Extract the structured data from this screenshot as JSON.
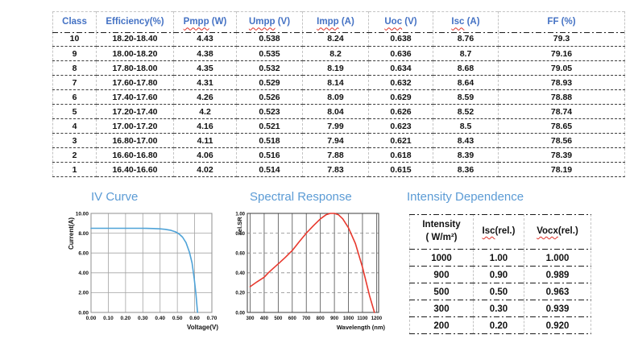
{
  "colors": {
    "header_blue": "#4472c4",
    "title_blue": "#5b9bd5",
    "squiggle_red": "#e03229",
    "iv_line_blue": "#4fa3d8",
    "sr_line_red": "#e8392e"
  },
  "main_table": {
    "columns": [
      {
        "word": "Class",
        "suffix": "",
        "squiggle": false
      },
      {
        "word": "Efficiency(%)",
        "suffix": "",
        "squiggle": false
      },
      {
        "word": "Pmpp",
        "suffix": " (W)",
        "squiggle": true
      },
      {
        "word": "Umpp",
        "suffix": " (V)",
        "squiggle": true
      },
      {
        "word": "Impp",
        "suffix": " (A)",
        "squiggle": true
      },
      {
        "word": "Uoc",
        "suffix": " (V)",
        "squiggle": true
      },
      {
        "word": "Isc",
        "suffix": " (A)",
        "squiggle": true
      },
      {
        "word": "FF (%)",
        "suffix": "",
        "squiggle": false
      }
    ],
    "rows": [
      [
        "10",
        "18.20-18.40",
        "4.43",
        "0.538",
        "8.24",
        "0.638",
        "8.76",
        "79.3"
      ],
      [
        "9",
        "18.00-18.20",
        "4.38",
        "0.535",
        "8.2",
        "0.636",
        "8.7",
        "79.16"
      ],
      [
        "8",
        "17.80-18.00",
        "4.35",
        "0.532",
        "8.19",
        "0.634",
        "8.68",
        "79.05"
      ],
      [
        "7",
        "17.60-17.80",
        "4.31",
        "0.529",
        "8.14",
        "0.632",
        "8.64",
        "78.93"
      ],
      [
        "6",
        "17.40-17.60",
        "4.26",
        "0.526",
        "8.09",
        "0.629",
        "8.59",
        "78.88"
      ],
      [
        "5",
        "17.20-17.40",
        "4.2",
        "0.523",
        "8.04",
        "0.626",
        "8.52",
        "78.74"
      ],
      [
        "4",
        "17.00-17.20",
        "4.16",
        "0.521",
        "7.99",
        "0.623",
        "8.5",
        "78.65"
      ],
      [
        "3",
        "16.80-17.00",
        "4.11",
        "0.518",
        "7.94",
        "0.621",
        "8.43",
        "78.56"
      ],
      [
        "2",
        "16.60-16.80",
        "4.06",
        "0.516",
        "7.88",
        "0.618",
        "8.39",
        "78.39"
      ],
      [
        "1",
        "16.40-16.60",
        "4.02",
        "0.514",
        "7.83",
        "0.615",
        "8.36",
        "78.19"
      ]
    ]
  },
  "intensity": {
    "title": "Intensity Dependence",
    "columns": [
      {
        "line1": "Intensity",
        "line2": "( W/m²)",
        "word": "",
        "suffix": "",
        "squiggle": false
      },
      {
        "line1": "",
        "line2": "",
        "word": "Isc",
        "suffix": "(rel.)",
        "squiggle": true
      },
      {
        "line1": "",
        "line2": "",
        "word": "Vocx",
        "suffix": "(rel.)",
        "squiggle": true
      }
    ],
    "rows": [
      [
        "1000",
        "1.00",
        "1.000"
      ],
      [
        "900",
        "0.90",
        "0.989"
      ],
      [
        "500",
        "0.50",
        "0.963"
      ],
      [
        "300",
        "0.30",
        "0.939"
      ],
      [
        "200",
        "0.20",
        "0.920"
      ]
    ]
  },
  "chart_data": [
    {
      "id": "iv-curve",
      "type": "line",
      "title": "IV Curve",
      "xlabel": "Voltage(V)",
      "ylabel": "Current(A)",
      "xlim": [
        0,
        0.7
      ],
      "ylim": [
        0,
        10
      ],
      "xticks": [
        0,
        0.1,
        0.2,
        0.3,
        0.4,
        0.5,
        0.6,
        0.7
      ],
      "xtick_labels": [
        "0.00",
        "0.10",
        "0.20",
        "0.30",
        "0.40",
        "0.50",
        "0.60",
        "0.70"
      ],
      "yticks": [
        0,
        2,
        4,
        6,
        8,
        10
      ],
      "ytick_labels": [
        "0.00",
        "2.00",
        "4.00",
        "6.00",
        "8.00",
        "10.00"
      ],
      "grid": "on",
      "legend": "none",
      "x": [
        0,
        0.04,
        0.08,
        0.12,
        0.16,
        0.2,
        0.24,
        0.28,
        0.32,
        0.36,
        0.4,
        0.43,
        0.46,
        0.49,
        0.51,
        0.53,
        0.55,
        0.57,
        0.585,
        0.598,
        0.608,
        0.617
      ],
      "y": [
        8.5,
        8.5,
        8.5,
        8.5,
        8.5,
        8.5,
        8.5,
        8.5,
        8.49,
        8.47,
        8.44,
        8.39,
        8.3,
        8.13,
        7.93,
        7.6,
        7.05,
        6.1,
        5.0,
        3.4,
        1.8,
        0
      ],
      "style": {
        "line": "#4fa3d8",
        "vgrid": {
          "color": "#a3a3a3",
          "dash": ""
        },
        "hgrid": {
          "color": "#a3a3a3",
          "dash": ""
        },
        "border": "#8f8f8f"
      }
    },
    {
      "id": "spectral-response",
      "type": "line",
      "title": "Spectral Response",
      "xlabel": "Wavelength (nm)",
      "ylabel": "rel.SR",
      "xlim": [
        280,
        1215
      ],
      "ylim": [
        0,
        1.0
      ],
      "xticks": [
        300,
        400,
        500,
        600,
        700,
        800,
        900,
        1000,
        1100,
        1200
      ],
      "xtick_labels": [
        "300",
        "400",
        "500",
        "600",
        "700",
        "800",
        "900",
        "1000",
        "1100",
        "1200"
      ],
      "yticks": [
        0,
        0.2,
        0.4,
        0.6,
        0.8,
        1.0
      ],
      "ytick_labels": [
        "0.00",
        "0.20",
        "0.40",
        "0.60",
        "0.80",
        "1.00"
      ],
      "grid": "on",
      "legend": "none",
      "x": [
        300,
        350,
        400,
        430,
        460,
        500,
        550,
        600,
        650,
        700,
        750,
        800,
        840,
        870,
        900,
        930,
        960,
        1000,
        1050,
        1100,
        1150,
        1185
      ],
      "y": [
        0.26,
        0.31,
        0.355,
        0.4,
        0.44,
        0.49,
        0.555,
        0.625,
        0.715,
        0.8,
        0.875,
        0.945,
        0.985,
        1.0,
        1.0,
        0.985,
        0.945,
        0.855,
        0.695,
        0.455,
        0.17,
        0
      ],
      "style": {
        "line": "#e8392e",
        "vgrid": {
          "color": "#4d4d4d",
          "dash": ""
        },
        "hgrid": {
          "color": "#8a8a8a",
          "dash": "4 3"
        },
        "border": "#3d3d3d"
      }
    }
  ]
}
